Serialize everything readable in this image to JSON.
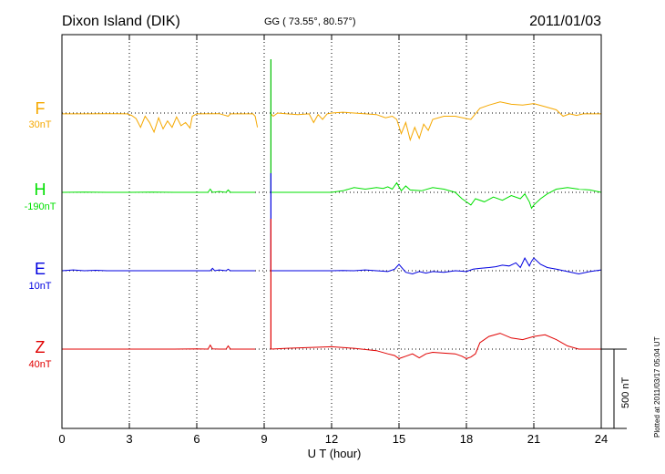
{
  "header": {
    "station": "Dixon Island (DIK)",
    "coords": "GG ( 73.55°,  80.57°)",
    "date": "2011/01/03"
  },
  "x_axis_label": "U T (hour)",
  "scale_bar_label": "500 nT",
  "plotted_note": "Plotted at 2011/03/17 05:04 UT",
  "chart_data": {
    "type": "line",
    "xlim": [
      0,
      24
    ],
    "x_ticks": [
      "0",
      "3",
      "6",
      "9",
      "12",
      "15",
      "18",
      "21",
      "24"
    ],
    "grid": true,
    "data_gap_hours": [
      8.8,
      9.3
    ],
    "scale_bar_nT": 500,
    "series": [
      {
        "name": "F",
        "offset": "30nT",
        "color": "#f5a800",
        "baseline_level": 0,
        "x": [
          0,
          1,
          2,
          2.9,
          3.1,
          3.3,
          3.5,
          3.7,
          3.9,
          4.1,
          4.3,
          4.5,
          4.7,
          4.9,
          5.1,
          5.3,
          5.5,
          5.7,
          5.8,
          6,
          7,
          7.4,
          7.5,
          8,
          8.5,
          8.6,
          8.7,
          9.3,
          9.4,
          9.6,
          10,
          10.5,
          11,
          11.2,
          11.4,
          11.6,
          11.8,
          12,
          12.5,
          13,
          13.5,
          14,
          14.4,
          14.7,
          14.9,
          15.1,
          15.3,
          15.5,
          15.7,
          15.9,
          16.1,
          16.3,
          16.5,
          17,
          17.5,
          18,
          18.2,
          18.6,
          19,
          19.5,
          20,
          20.5,
          21,
          21.5,
          22,
          22.3,
          22.6,
          22.9,
          23.2,
          23.5,
          24
        ],
        "y": [
          -5,
          -5,
          -4,
          -5,
          -15,
          -35,
          -90,
          -20,
          -60,
          -120,
          -30,
          -100,
          -50,
          -90,
          -25,
          -80,
          -60,
          -95,
          -20,
          -5,
          -4,
          -20,
          -5,
          -5,
          -5,
          -20,
          -90,
          -5,
          -20,
          0,
          -5,
          -10,
          -5,
          -60,
          -10,
          -40,
          -5,
          0,
          5,
          0,
          -5,
          -10,
          -30,
          -20,
          -40,
          -130,
          -60,
          -170,
          -90,
          -160,
          -70,
          -110,
          -40,
          -20,
          -20,
          -35,
          -40,
          30,
          50,
          70,
          55,
          50,
          60,
          40,
          20,
          -20,
          -5,
          -15,
          -5,
          -5,
          -5
        ]
      },
      {
        "name": "H",
        "offset": "-190nT",
        "color": "#00e000",
        "baseline_level": 0,
        "x": [
          0,
          1,
          2,
          3,
          4,
          5,
          6,
          6.5,
          6.6,
          6.7,
          7,
          7.3,
          7.4,
          7.5,
          8,
          8.6,
          9.3,
          10,
          11,
          12,
          12.5,
          13,
          13.5,
          14,
          14.3,
          14.5,
          14.7,
          14.9,
          15.1,
          15.3,
          15.5,
          16,
          16.5,
          17,
          17.5,
          17.8,
          18,
          18.2,
          18.4,
          18.8,
          19.2,
          19.6,
          20,
          20.4,
          20.6,
          20.8,
          20.9,
          21,
          21.3,
          21.6,
          22,
          22.5,
          23,
          23.5,
          24
        ],
        "y": [
          0,
          2,
          0,
          0,
          2,
          0,
          0,
          0,
          20,
          0,
          5,
          0,
          15,
          0,
          0,
          0,
          0,
          0,
          0,
          0,
          10,
          30,
          20,
          30,
          25,
          35,
          20,
          60,
          10,
          40,
          15,
          10,
          30,
          20,
          0,
          -40,
          -60,
          -80,
          -40,
          -60,
          -30,
          -50,
          -20,
          -40,
          -10,
          -60,
          -100,
          -80,
          -40,
          -10,
          20,
          30,
          20,
          15,
          0
        ]
      },
      {
        "name": "E",
        "offset": "10nT",
        "color": "#0000e0",
        "baseline_level": 0,
        "x": [
          0,
          0.5,
          1,
          1.5,
          2,
          3,
          4,
          5,
          6,
          6.6,
          6.7,
          6.8,
          7,
          7.3,
          7.4,
          7.5,
          8,
          8.6,
          9.3,
          10,
          11,
          12,
          12.5,
          13,
          13.5,
          14,
          14.5,
          14.8,
          15,
          15.3,
          15.6,
          15.9,
          16.2,
          16.5,
          17,
          17.5,
          18,
          18.3,
          18.6,
          19,
          19.3,
          19.6,
          19.9,
          20.2,
          20.4,
          20.6,
          20.8,
          20.9,
          21,
          21.3,
          21.6,
          22,
          22.5,
          23,
          23.5,
          24
        ],
        "y": [
          0,
          5,
          0,
          3,
          0,
          0,
          0,
          0,
          0,
          0,
          15,
          0,
          5,
          0,
          10,
          0,
          0,
          0,
          0,
          0,
          0,
          0,
          2,
          0,
          5,
          0,
          -5,
          10,
          40,
          -10,
          -20,
          -5,
          -15,
          -5,
          -10,
          0,
          -5,
          10,
          15,
          20,
          25,
          35,
          30,
          50,
          20,
          80,
          30,
          60,
          80,
          40,
          20,
          10,
          -5,
          -20,
          -5,
          5
        ]
      },
      {
        "name": "Z",
        "offset": "40nT",
        "color": "#e00000",
        "baseline_level": 0,
        "x": [
          0,
          1,
          2,
          3,
          4,
          5,
          6,
          6.5,
          6.6,
          6.7,
          7,
          7.3,
          7.4,
          7.5,
          8,
          8.6,
          9.3,
          10,
          11,
          12,
          12.5,
          13,
          14,
          14.5,
          14.8,
          15,
          15.3,
          15.6,
          15.9,
          16.2,
          16.5,
          17,
          17.5,
          17.8,
          18,
          18.2,
          18.4,
          18.6,
          19,
          19.5,
          20,
          20.5,
          21,
          21.5,
          22,
          22.5,
          23,
          24
        ],
        "y": [
          0,
          0,
          0,
          0,
          0,
          0,
          2,
          0,
          25,
          2,
          0,
          0,
          20,
          0,
          0,
          0,
          0,
          5,
          10,
          15,
          10,
          5,
          -10,
          -30,
          -40,
          -60,
          -45,
          -30,
          -55,
          -30,
          -20,
          -25,
          -30,
          -45,
          -60,
          -50,
          -30,
          40,
          80,
          100,
          70,
          60,
          80,
          90,
          60,
          20,
          0,
          0
        ]
      }
    ]
  }
}
